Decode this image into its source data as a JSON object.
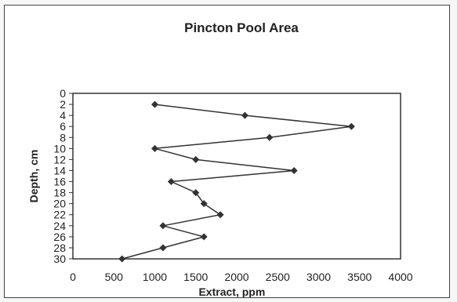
{
  "chart_data": {
    "type": "line",
    "title": "Pincton Pool Area",
    "xlabel": "Extract, ppm",
    "ylabel": "Depth, cm",
    "xlim": [
      0,
      4000
    ],
    "ylim": [
      0,
      30
    ],
    "y_inverted": true,
    "grid": false,
    "legend": "none",
    "x_ticks": [
      0,
      500,
      1000,
      1500,
      2000,
      2500,
      3000,
      3500,
      4000
    ],
    "y_ticks": [
      0,
      2,
      4,
      6,
      8,
      10,
      12,
      14,
      16,
      18,
      20,
      22,
      24,
      26,
      28,
      30
    ],
    "series": [
      {
        "marker": "diamond",
        "color": "#333333",
        "x": [
          1000,
          2100,
          3400,
          2400,
          1000,
          1500,
          2700,
          1200,
          1500,
          1600,
          1800,
          1100,
          1600,
          1100,
          600
        ],
        "y": [
          2,
          4,
          6,
          8,
          10,
          12,
          14,
          16,
          18,
          20,
          22,
          24,
          26,
          28,
          30
        ]
      }
    ]
  }
}
